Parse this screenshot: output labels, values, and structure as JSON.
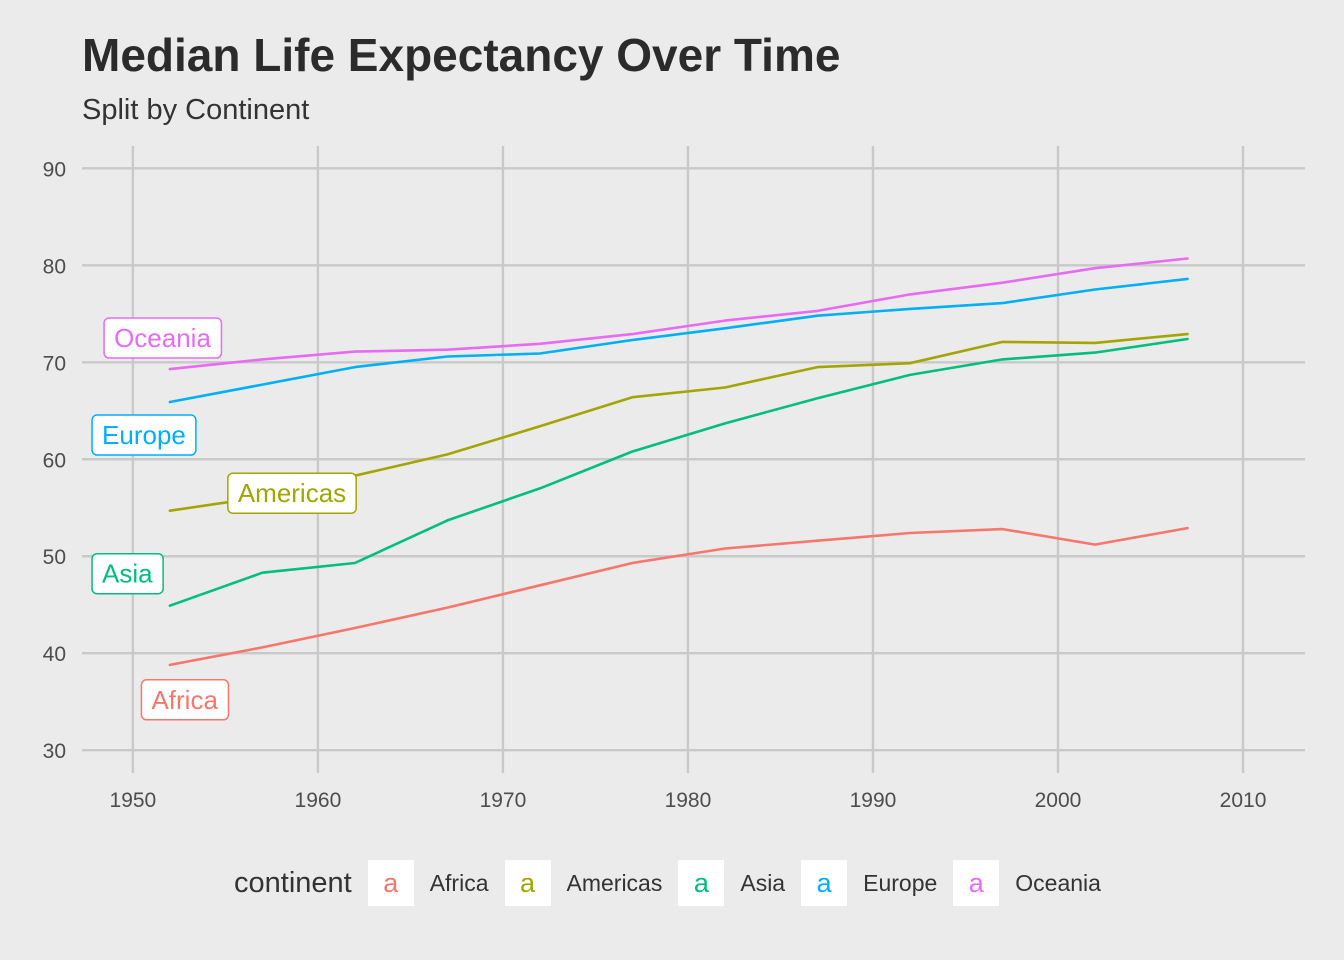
{
  "chart_data": {
    "type": "line",
    "title": "Median Life Expectancy Over Time",
    "subtitle": "Split by Continent",
    "xlabel": "",
    "ylabel": "",
    "xlim": [
      1947.25,
      2013.35
    ],
    "ylim": [
      27.65,
      92.3
    ],
    "x_ticks": [
      1950,
      1960,
      1970,
      1980,
      1990,
      2000,
      2010
    ],
    "y_ticks": [
      30,
      40,
      50,
      60,
      70,
      80,
      90
    ],
    "grid": true,
    "x": [
      1952,
      1957,
      1962,
      1967,
      1972,
      1977,
      1982,
      1987,
      1992,
      1997,
      2002,
      2007
    ],
    "series": [
      {
        "name": "Africa",
        "color": "#F8766D",
        "values": [
          38.8,
          40.6,
          42.6,
          44.7,
          47.0,
          49.3,
          50.8,
          51.6,
          52.4,
          52.8,
          51.2,
          52.9
        ]
      },
      {
        "name": "Americas",
        "color": "#A3A500",
        "values": [
          54.7,
          56.1,
          58.3,
          60.5,
          63.4,
          66.4,
          67.4,
          69.5,
          69.9,
          72.1,
          72.0,
          72.9
        ]
      },
      {
        "name": "Asia",
        "color": "#00BF7D",
        "values": [
          44.9,
          48.3,
          49.3,
          53.7,
          57.0,
          60.8,
          63.7,
          66.3,
          68.7,
          70.3,
          71.0,
          72.4
        ]
      },
      {
        "name": "Europe",
        "color": "#00B0F6",
        "values": [
          65.9,
          67.7,
          69.5,
          70.6,
          70.9,
          72.3,
          73.5,
          74.8,
          75.5,
          76.1,
          77.5,
          78.6
        ]
      },
      {
        "name": "Oceania",
        "color": "#E76BF3",
        "values": [
          69.3,
          70.3,
          71.1,
          71.3,
          71.9,
          72.9,
          74.3,
          75.3,
          77.0,
          78.2,
          79.7,
          80.7
        ]
      }
    ],
    "direct_labels": [
      {
        "text": "Africa",
        "series": "Africa",
        "x": 1952.8,
        "y": 35.2
      },
      {
        "text": "Americas",
        "series": "Americas",
        "x": 1958.6,
        "y": 56.5
      },
      {
        "text": "Asia",
        "series": "Asia",
        "x": 1949.7,
        "y": 48.2
      },
      {
        "text": "Europe",
        "series": "Europe",
        "x": 1950.6,
        "y": 62.5
      },
      {
        "text": "Oceania",
        "series": "Oceania",
        "x": 1951.6,
        "y": 72.5
      }
    ],
    "legend": {
      "title": "continent",
      "position": "bottom",
      "key_glyph": "a",
      "items": [
        "Africa",
        "Americas",
        "Asia",
        "Europe",
        "Oceania"
      ]
    }
  }
}
